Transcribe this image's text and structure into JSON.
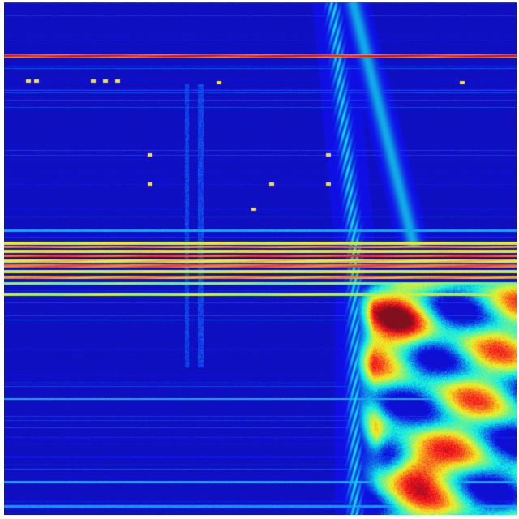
{
  "image": {
    "kind": "heatmap",
    "colormap": "jet",
    "colors": {
      "background": "#ffffff",
      "low": "#2a2f9e",
      "mid": "#3fd0e0",
      "high": "#f4e03a",
      "peak": "#d8281a"
    }
  }
}
